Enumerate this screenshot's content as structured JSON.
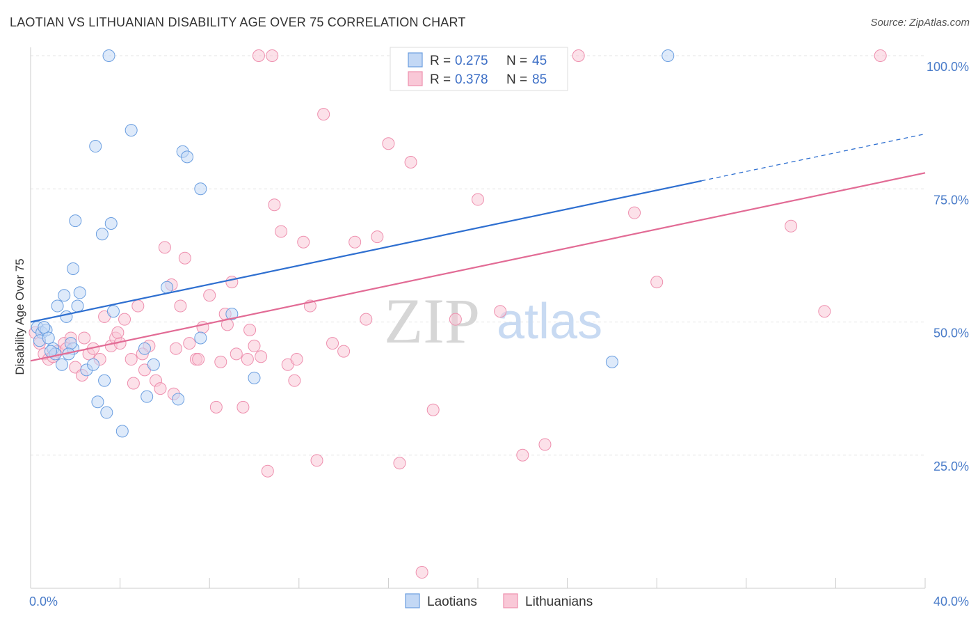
{
  "title": "LAOTIAN VS LITHUANIAN DISABILITY AGE OVER 75 CORRELATION CHART",
  "source": "Source: ZipAtlas.com",
  "watermark": {
    "zip": "ZIP",
    "atlas": "atlas"
  },
  "legend": {
    "rows": [
      {
        "r_label": "R = ",
        "r_value": "0.275",
        "n_label": "N = ",
        "n_value": "45"
      },
      {
        "r_label": "R = ",
        "r_value": "0.378",
        "n_label": "N = ",
        "n_value": "85"
      }
    ]
  },
  "chart_data": {
    "type": "scatter",
    "title": "LAOTIAN VS LITHUANIAN DISABILITY AGE OVER 75 CORRELATION CHART",
    "xlabel": "",
    "ylabel": "Disability Age Over 75",
    "xlim": [
      0,
      40
    ],
    "ylim": [
      0,
      102
    ],
    "x_tick_labels": [
      "0.0%",
      "40.0%"
    ],
    "y_ticks": [
      25,
      50,
      75,
      100
    ],
    "y_tick_labels": [
      "25.0%",
      "50.0%",
      "75.0%",
      "100.0%"
    ],
    "grid": "horizontal dashed",
    "legend_position": "top-center",
    "colors": {
      "Laotians": "#6a9ee0",
      "Lithuanians": "#ee8fae",
      "laotians_line": "#2e6fd0",
      "lithuanians_line": "#e26b95"
    },
    "series": [
      {
        "name": "Laotians",
        "R": 0.275,
        "N": 45,
        "trend": {
          "x0": 0,
          "y0": 50,
          "x1": 30,
          "y1": 76.5,
          "dashed_to_x": 40,
          "dashed_to_y": 85.3
        },
        "points": [
          [
            0.3,
            49
          ],
          [
            0.5,
            48
          ],
          [
            0.4,
            46.5
          ],
          [
            0.7,
            48.5
          ],
          [
            0.8,
            47
          ],
          [
            0.6,
            49
          ],
          [
            1.0,
            45
          ],
          [
            1.2,
            53
          ],
          [
            1.5,
            55
          ],
          [
            1.6,
            51
          ],
          [
            1.9,
            60
          ],
          [
            2.0,
            69
          ],
          [
            2.2,
            55.5
          ],
          [
            2.1,
            53
          ],
          [
            1.9,
            45
          ],
          [
            1.8,
            46
          ],
          [
            1.4,
            42
          ],
          [
            1.7,
            44
          ],
          [
            2.5,
            41
          ],
          [
            2.9,
            83
          ],
          [
            3.2,
            66.5
          ],
          [
            3.5,
            100
          ],
          [
            3.3,
            39
          ],
          [
            3.4,
            33
          ],
          [
            3.6,
            68.5
          ],
          [
            3.7,
            52
          ],
          [
            4.5,
            86
          ],
          [
            4.1,
            29.5
          ],
          [
            5.1,
            45
          ],
          [
            5.2,
            36
          ],
          [
            5.5,
            42
          ],
          [
            6.1,
            56.5
          ],
          [
            6.8,
            82
          ],
          [
            7.0,
            81
          ],
          [
            7.6,
            75
          ],
          [
            6.6,
            35.5
          ],
          [
            7.6,
            47
          ],
          [
            9.0,
            51.5
          ],
          [
            10.0,
            39.5
          ],
          [
            26.0,
            42.5
          ],
          [
            28.5,
            100
          ],
          [
            3.0,
            35
          ],
          [
            2.8,
            42
          ],
          [
            1.1,
            44
          ],
          [
            0.9,
            44.5
          ]
        ]
      },
      {
        "name": "Lithuanians",
        "R": 0.378,
        "N": 85,
        "trend": {
          "x0": 0,
          "y0": 42.7,
          "x1": 40,
          "y1": 78
        },
        "points": [
          [
            0.2,
            48
          ],
          [
            0.4,
            46
          ],
          [
            0.6,
            44
          ],
          [
            0.8,
            43
          ],
          [
            1.0,
            43.5
          ],
          [
            1.2,
            44.5
          ],
          [
            1.5,
            46
          ],
          [
            1.8,
            47
          ],
          [
            2.0,
            41.5
          ],
          [
            2.3,
            40
          ],
          [
            2.6,
            44
          ],
          [
            2.8,
            45
          ],
          [
            3.1,
            43
          ],
          [
            3.3,
            51
          ],
          [
            3.6,
            45.5
          ],
          [
            3.8,
            47
          ],
          [
            4.0,
            46
          ],
          [
            4.2,
            50.5
          ],
          [
            4.5,
            43
          ],
          [
            4.8,
            53
          ],
          [
            5.1,
            41
          ],
          [
            5.3,
            45.5
          ],
          [
            5.6,
            39
          ],
          [
            5.8,
            37.5
          ],
          [
            6.0,
            64
          ],
          [
            6.3,
            57
          ],
          [
            6.5,
            45
          ],
          [
            6.7,
            53
          ],
          [
            6.9,
            62
          ],
          [
            7.1,
            46
          ],
          [
            7.4,
            43
          ],
          [
            7.7,
            49
          ],
          [
            8.0,
            55
          ],
          [
            8.3,
            34
          ],
          [
            8.5,
            42.5
          ],
          [
            8.7,
            51.5
          ],
          [
            9.0,
            57.5
          ],
          [
            9.2,
            44
          ],
          [
            9.5,
            34
          ],
          [
            9.8,
            48.5
          ],
          [
            10.0,
            45.5
          ],
          [
            10.3,
            43.5
          ],
          [
            10.6,
            22
          ],
          [
            10.9,
            72
          ],
          [
            11.2,
            67
          ],
          [
            11.5,
            42
          ],
          [
            11.8,
            39
          ],
          [
            12.2,
            65
          ],
          [
            12.5,
            53
          ],
          [
            12.8,
            24
          ],
          [
            13.1,
            89
          ],
          [
            13.5,
            46
          ],
          [
            14.0,
            44.5
          ],
          [
            14.5,
            65
          ],
          [
            15.0,
            50.5
          ],
          [
            15.5,
            66
          ],
          [
            16.0,
            83.5
          ],
          [
            16.5,
            23.5
          ],
          [
            17.0,
            80
          ],
          [
            17.5,
            3
          ],
          [
            18.0,
            33.5
          ],
          [
            19.0,
            50.5
          ],
          [
            20.0,
            73
          ],
          [
            21.0,
            52
          ],
          [
            22.0,
            25
          ],
          [
            23.0,
            27
          ],
          [
            27.0,
            70.5
          ],
          [
            28.0,
            57.5
          ],
          [
            34.0,
            68
          ],
          [
            35.5,
            52
          ],
          [
            38.0,
            100
          ],
          [
            10.2,
            100
          ],
          [
            10.8,
            100
          ],
          [
            24.5,
            100
          ],
          [
            20.5,
            100
          ],
          [
            6.4,
            36.5
          ],
          [
            4.6,
            38.5
          ],
          [
            3.9,
            48
          ],
          [
            5.0,
            44
          ],
          [
            7.5,
            43
          ],
          [
            2.4,
            47
          ],
          [
            1.6,
            45
          ],
          [
            9.7,
            43
          ],
          [
            8.8,
            49.5
          ],
          [
            11.9,
            43
          ]
        ]
      }
    ]
  },
  "bottom_legend": [
    {
      "label": "Laotians"
    },
    {
      "label": "Lithuanians"
    }
  ]
}
